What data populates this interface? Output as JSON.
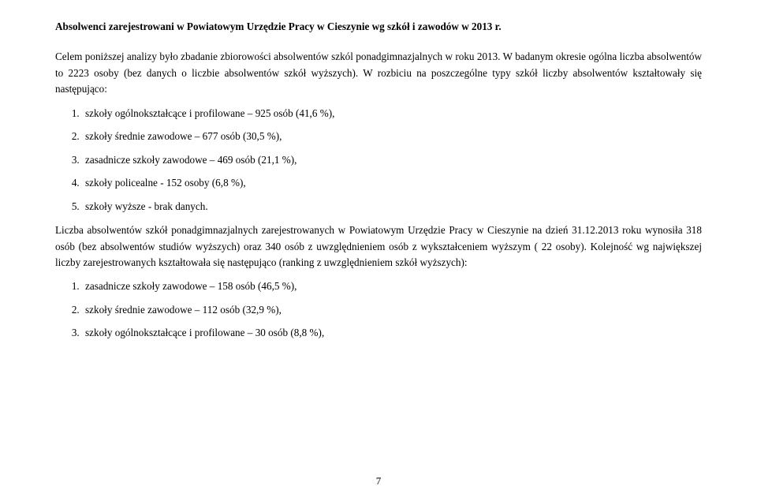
{
  "title": "Absolwenci zarejestrowani w Powiatowym Urzędzie Pracy w Cieszynie wg szkół i zawodów w 2013 r.",
  "para1": "Celem poniższej analizy było zbadanie zbiorowości absolwentów szkól ponadgimnazjalnych w roku 2013. W badanym okresie ogólna liczba absolwentów to 2223 osoby (bez danych o liczbie absolwentów szkół wyższych). W rozbiciu na poszczególne typy szkół liczby absolwentów kształtowały się następująco:",
  "list1": [
    "szkoły ogólnokształcące i profilowane – 925 osób (41,6 %),",
    "szkoły średnie zawodowe – 677 osób (30,5 %),",
    "zasadnicze szkoły zawodowe – 469 osób (21,1 %),",
    "szkoły policealne -  152 osoby (6,8 %),",
    "szkoły wyższe -  brak danych."
  ],
  "para2": "Liczba absolwentów szkół ponadgimnazjalnych zarejestrowanych w Powiatowym Urzędzie Pracy w Cieszynie  na dzień 31.12.2013 roku wynosiła 318 osób (bez  absolwentów studiów wyższych) oraz 340 osób z uwzględnieniem osób z wykształceniem wyższym ( 22 osoby). Kolejność wg największej liczby zarejestrowanych kształtowała się następująco (ranking z uwzględnieniem szkół wyższych):",
  "list2": [
    "zasadnicze szkoły zawodowe – 158 osób (46,5 %),",
    "szkoły średnie zawodowe – 112 osób (32,9 %),",
    "szkoły ogólnokształcące i profilowane – 30 osób (8,8 %),"
  ],
  "pageNumber": "7"
}
